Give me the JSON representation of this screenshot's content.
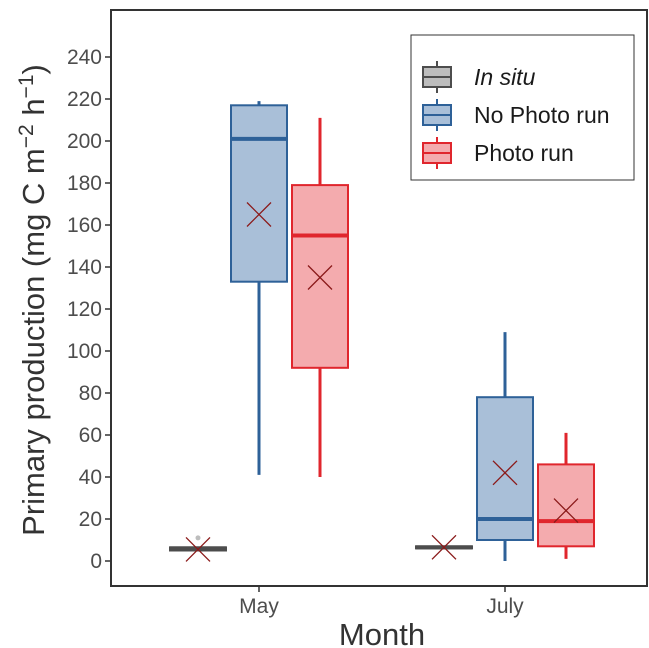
{
  "chart_data": {
    "type": "box",
    "xlabel": "Month",
    "ylabel_main": "Primary production (mg C m",
    "ylabel_exp1": "−2",
    "ylabel_mid": " h",
    "ylabel_exp2": "−1",
    "ylabel_end": ")",
    "ylim": [
      -12,
      250
    ],
    "yticks": [
      0,
      20,
      40,
      60,
      80,
      100,
      120,
      140,
      160,
      180,
      200,
      220,
      240
    ],
    "categories": [
      "May",
      "July"
    ],
    "grid": false,
    "legend_position": "top-right",
    "series": [
      {
        "name": "In situ",
        "italic": true,
        "fill": "#bdbdbd",
        "stroke": "#4d4d4d",
        "mean_color": "#8b1a1a",
        "boxes": [
          {
            "category": "May",
            "min": 5,
            "q1": 5,
            "median": 6,
            "q3": 6.5,
            "max": 6.5,
            "mean": 5.5,
            "outliers": [
              11
            ]
          },
          {
            "category": "July",
            "min": 6,
            "q1": 6,
            "median": 6.5,
            "q3": 7,
            "max": 7,
            "mean": 6.5,
            "outliers": []
          }
        ]
      },
      {
        "name": "No Photo run",
        "italic": false,
        "fill": "#a9bfd8",
        "stroke": "#2e6198",
        "mean_color": "#8b1a1a",
        "boxes": [
          {
            "category": "May",
            "min": 41,
            "q1": 133,
            "median": 201,
            "q3": 217,
            "max": 219,
            "mean": 165,
            "outliers": []
          },
          {
            "category": "July",
            "min": 0,
            "q1": 10,
            "median": 20,
            "q3": 78,
            "max": 109,
            "mean": 42,
            "outliers": []
          }
        ]
      },
      {
        "name": "Photo run",
        "italic": false,
        "fill": "#f4abae",
        "stroke": "#e0262d",
        "mean_color": "#8b1a1a",
        "boxes": [
          {
            "category": "May",
            "min": 40,
            "q1": 92,
            "median": 155,
            "q3": 179,
            "max": 211,
            "mean": 135,
            "outliers": []
          },
          {
            "category": "July",
            "min": 1,
            "q1": 7,
            "median": 19,
            "q3": 46,
            "max": 61,
            "mean": 24,
            "outliers": []
          }
        ]
      }
    ]
  }
}
